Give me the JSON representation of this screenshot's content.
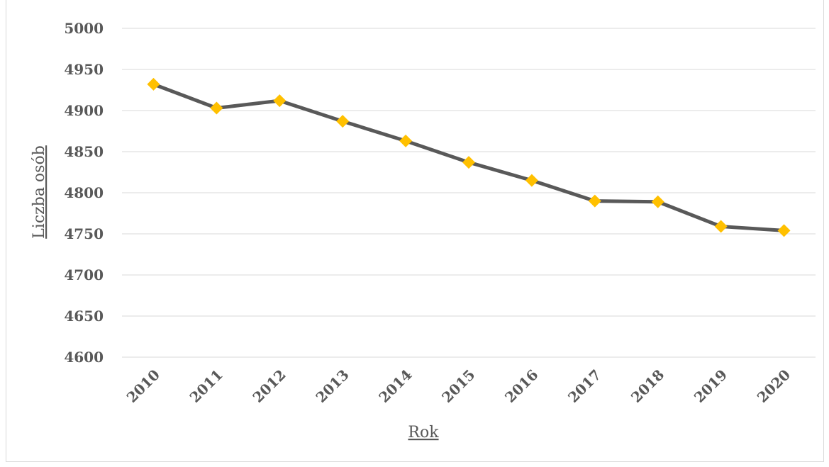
{
  "colors": {
    "line": "#595959",
    "marker": "#FFC000",
    "grid": "#d9d9d9",
    "text": "#595959"
  },
  "chart_data": {
    "type": "line",
    "x": [
      "2010",
      "2011",
      "2012",
      "2013",
      "2014",
      "2015",
      "2016",
      "2017",
      "2018",
      "2019",
      "2020"
    ],
    "series": [
      {
        "values": [
          4932,
          4903,
          4912,
          4887,
          4863,
          4837,
          4815,
          4790,
          4789,
          4759,
          4754
        ]
      }
    ],
    "y_ticks": [
      "5000",
      "4950",
      "4900",
      "4850",
      "4800",
      "4750",
      "4700",
      "4650",
      "4600"
    ],
    "xlabel": "Rok",
    "ylabel": "Liczba osób",
    "ylim": [
      4600,
      5000
    ],
    "grid": true,
    "legend": "none",
    "x_tick_rotation": -45
  }
}
